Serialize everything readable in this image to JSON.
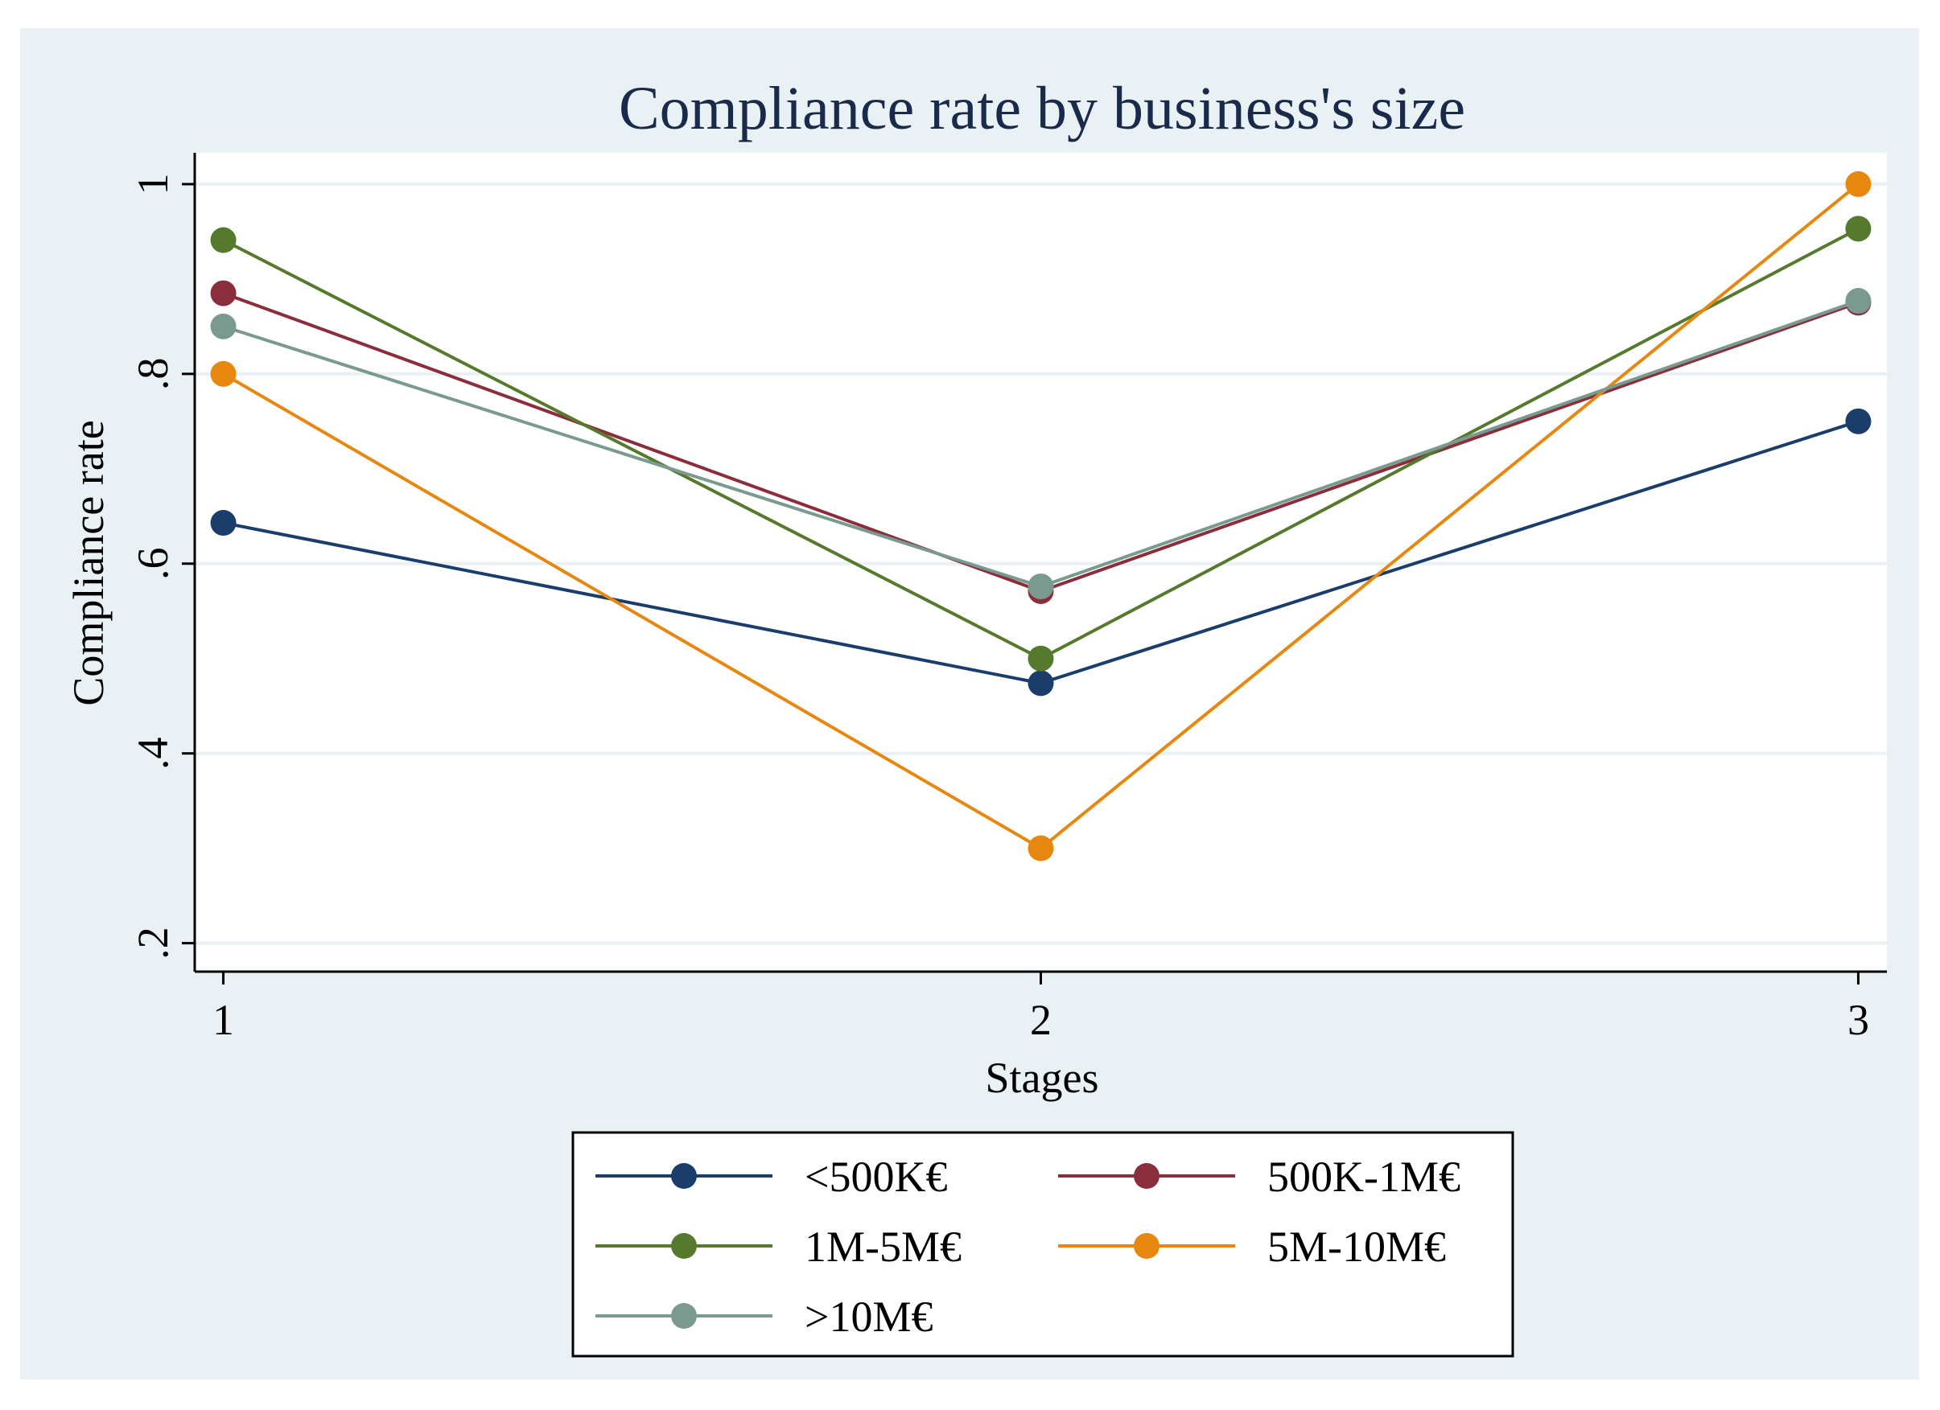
{
  "chart_data": {
    "type": "line",
    "title": "Compliance rate by business's size",
    "xlabel": "Stages",
    "ylabel": "Compliance rate",
    "x": [
      1,
      2,
      3
    ],
    "x_tick_labels": [
      "1",
      "2",
      "3"
    ],
    "xlim": [
      0.965,
      3.035
    ],
    "ylim": [
      0.17,
      1.033
    ],
    "y_ticks": [
      0.2,
      0.4,
      0.6,
      0.8,
      1.0
    ],
    "y_tick_labels": [
      ".2",
      ".4",
      ".6",
      ".8",
      "1"
    ],
    "grid": true,
    "legend_position": "bottom",
    "series": [
      {
        "name": "<500K€",
        "color": "#1a3d6b",
        "values": [
          0.643,
          0.474,
          0.75
        ]
      },
      {
        "name": "500K-1M€",
        "color": "#8b2e3c",
        "values": [
          0.885,
          0.571,
          0.875
        ]
      },
      {
        "name": "1M-5M€",
        "color": "#557a2e",
        "values": [
          0.941,
          0.5,
          0.953
        ]
      },
      {
        "name": "5M-10M€",
        "color": "#e8870f",
        "values": [
          0.8,
          0.3,
          1.0
        ]
      },
      {
        "name": ">10M€",
        "color": "#7a9a90",
        "values": [
          0.85,
          0.576,
          0.877
        ]
      }
    ],
    "colors": {
      "outer_background": "#eaf1f4",
      "plot_background": "#ffffff",
      "gridline": "#eaf1f4",
      "axis": "#000000",
      "title": "#1a2a4a"
    }
  }
}
